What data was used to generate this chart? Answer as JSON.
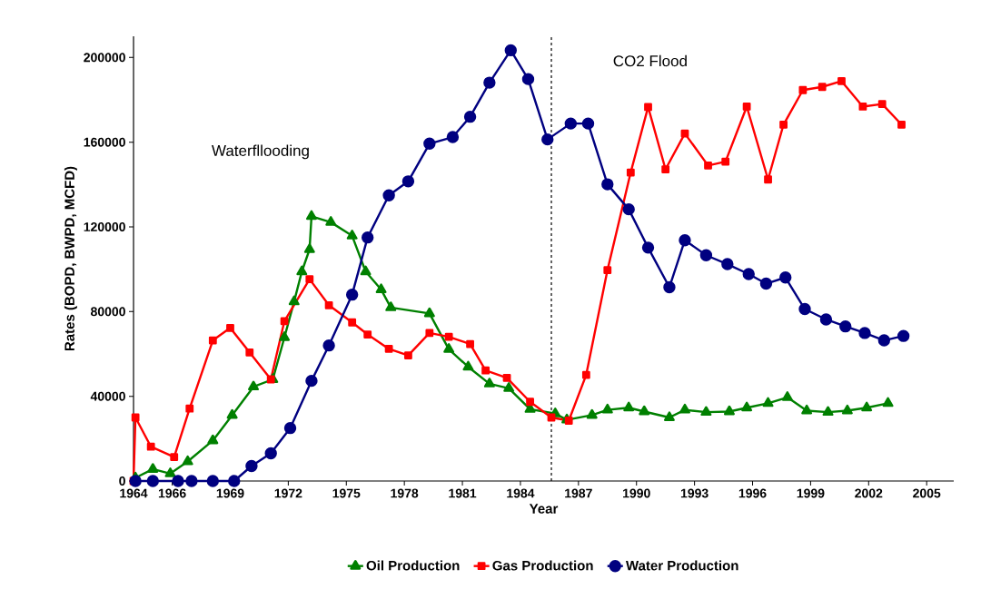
{
  "chart_data": {
    "type": "line",
    "xlabel": "Year",
    "ylabel": "Rates (BOPD, BWPD, MCFD)",
    "xlim": [
      1964,
      2006.4
    ],
    "xticks": [
      1964,
      1966,
      1969,
      1972,
      1975,
      1978,
      1981,
      1984,
      1987,
      1990,
      1993,
      1996,
      1999,
      2002,
      2005
    ],
    "ylim": [
      0,
      210000
    ],
    "yticks": [
      0,
      40000,
      80000,
      120000,
      160000,
      200000
    ],
    "grid": false,
    "legend": "bottom",
    "line_style": "solid",
    "ref_lines": [
      {
        "axis": "x",
        "value": 1985.6,
        "color": "#000000",
        "line_style": "dashed"
      }
    ],
    "annotations": [
      "Waterfllooding",
      "CO2 Flood"
    ],
    "series": [
      {
        "name": "Oil Production",
        "color": "#008000",
        "marker": "triangle",
        "x": [
          1964.1,
          1965.0,
          1965.9,
          1966.8,
          1968.1,
          1969.1,
          1970.2,
          1971.2,
          1971.8,
          1972.3,
          1972.7,
          1973.1,
          1973.2,
          1974.2,
          1975.3,
          1976.0,
          1976.8,
          1977.3,
          1979.3,
          1980.3,
          1981.3,
          1982.4,
          1983.4,
          1984.5,
          1985.8,
          1986.4,
          1987.7,
          1988.5,
          1989.6,
          1990.4,
          1991.7,
          1992.5,
          1993.6,
          1994.8,
          1995.7,
          1996.8,
          1997.8,
          1998.8,
          1999.9,
          2000.9,
          2001.9,
          2003.0
        ],
        "values": [
          1500,
          5600,
          3500,
          9200,
          19100,
          31100,
          44500,
          48000,
          67800,
          84700,
          98900,
          109400,
          125000,
          122200,
          115800,
          98900,
          90400,
          81900,
          79100,
          62200,
          53900,
          45900,
          43800,
          33900,
          31800,
          28900,
          31100,
          33600,
          34600,
          32800,
          30000,
          33600,
          32500,
          32800,
          34600,
          36700,
          39500,
          33200,
          32500,
          33200,
          34600,
          36700
        ]
      },
      {
        "name": "Gas Production",
        "color": "#ff0000",
        "marker": "square",
        "x": [
          1964.0,
          1964.1,
          1964.9,
          1966.1,
          1966.9,
          1968.1,
          1969.0,
          1970.0,
          1971.1,
          1971.8,
          1973.1,
          1974.1,
          1975.3,
          1976.1,
          1977.2,
          1978.2,
          1979.3,
          1980.3,
          1981.4,
          1982.2,
          1983.3,
          1984.5,
          1985.6,
          1986.5,
          1987.4,
          1988.5,
          1989.7,
          1990.6,
          1991.5,
          1992.5,
          1993.7,
          1994.6,
          1995.7,
          1996.8,
          1997.6,
          1998.6,
          1999.6,
          2000.6,
          2001.7,
          2002.7,
          2003.7
        ],
        "values": [
          0,
          30000,
          16200,
          11300,
          34200,
          66400,
          72300,
          60700,
          48000,
          75500,
          95300,
          83000,
          74900,
          69200,
          62400,
          59300,
          69900,
          68100,
          64700,
          52200,
          48700,
          37400,
          30000,
          28500,
          50100,
          99600,
          145700,
          176600,
          147200,
          164100,
          149000,
          150800,
          176800,
          142400,
          168300,
          184600,
          186100,
          188800,
          176800,
          178000,
          168300
        ]
      },
      {
        "name": "Water Production",
        "color": "#000080",
        "marker": "circle",
        "x": [
          1964.1,
          1965.0,
          1966.3,
          1967.0,
          1968.1,
          1969.2,
          1970.1,
          1971.1,
          1972.1,
          1973.2,
          1974.1,
          1975.3,
          1976.1,
          1977.2,
          1978.2,
          1979.3,
          1980.5,
          1981.4,
          1982.4,
          1983.5,
          1984.4,
          1985.4,
          1986.6,
          1987.5,
          1988.5,
          1989.6,
          1990.6,
          1991.7,
          1992.5,
          1993.6,
          1994.7,
          1995.8,
          1996.7,
          1997.7,
          1998.7,
          1999.8,
          2000.8,
          2001.8,
          2002.8,
          2003.8
        ],
        "values": [
          0,
          0,
          0,
          0,
          0,
          0,
          7060,
          13100,
          25000,
          47300,
          64000,
          88000,
          115000,
          134900,
          141500,
          159300,
          162400,
          172000,
          188100,
          203400,
          189800,
          161300,
          168800,
          168800,
          140100,
          128300,
          110200,
          91500,
          113700,
          106600,
          102400,
          97700,
          93200,
          96100,
          81200,
          76300,
          73000,
          69900,
          66400,
          68500
        ]
      }
    ]
  }
}
